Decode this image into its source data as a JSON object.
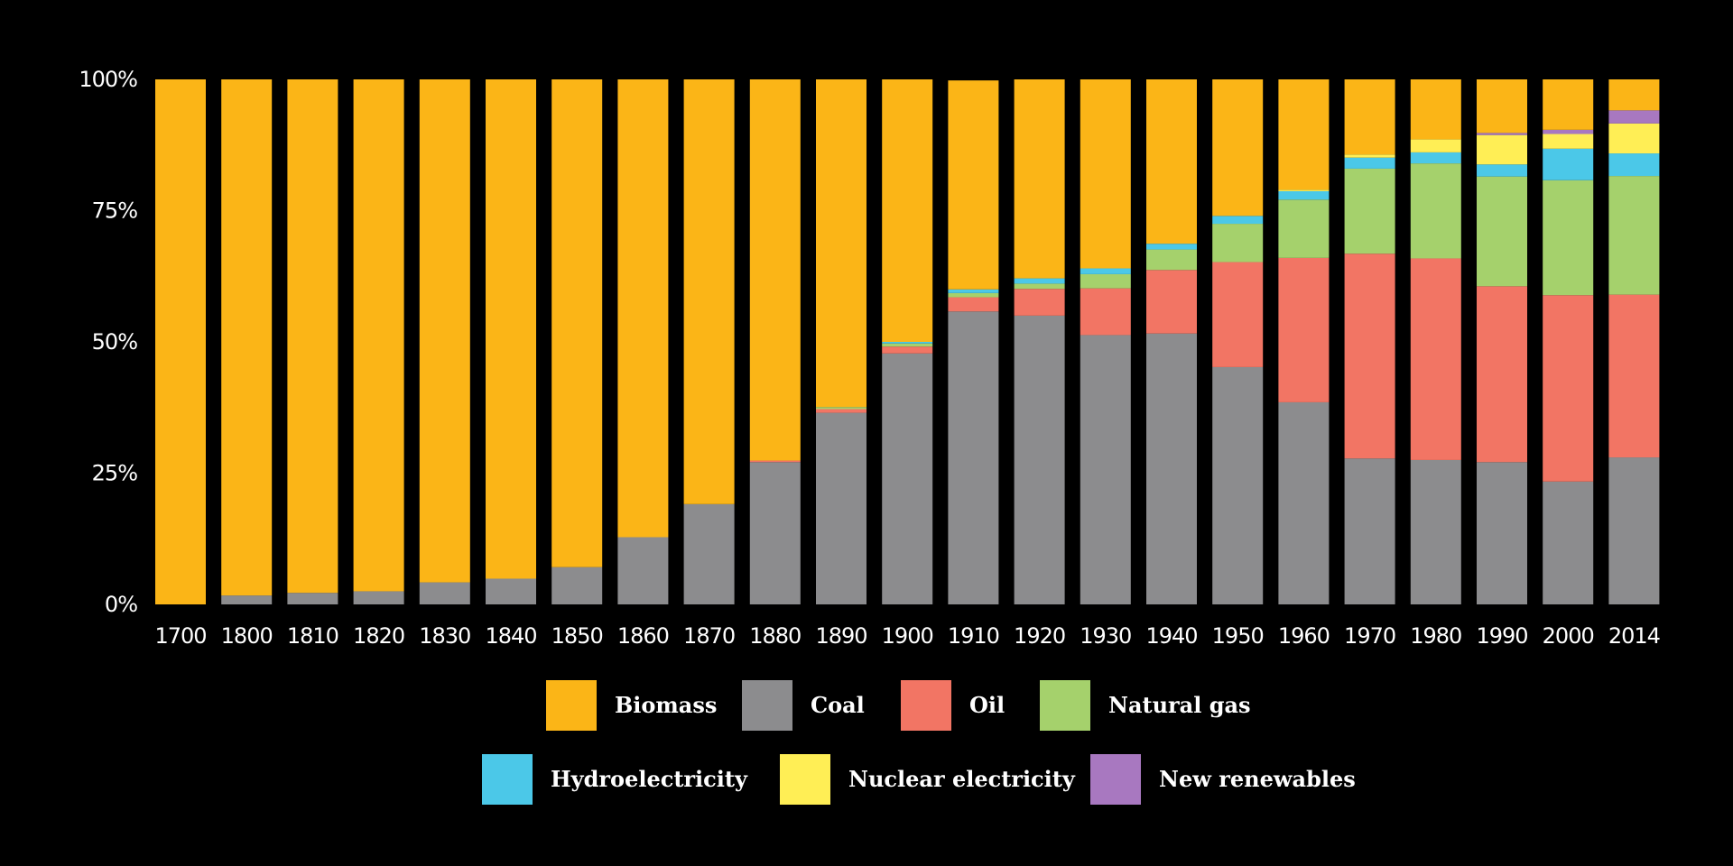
{
  "chart_data": {
    "type": "bar",
    "stacked": true,
    "normalized": true,
    "title": "",
    "xlabel": "",
    "ylabel": "",
    "ylim": [
      0,
      100
    ],
    "y_ticks": [
      "0%",
      "25%",
      "50%",
      "75%",
      "100%"
    ],
    "y_tick_values": [
      0,
      25,
      50,
      75,
      100
    ],
    "legend_position": "bottom",
    "categories": [
      "1700",
      "1800",
      "1810",
      "1820",
      "1830",
      "1840",
      "1850",
      "1860",
      "1870",
      "1880",
      "1890",
      "1900",
      "1910",
      "1920",
      "1930",
      "1940",
      "1950",
      "1960",
      "1970",
      "1980",
      "1990",
      "2000",
      "2014"
    ],
    "series": [
      {
        "name": "Coal",
        "color": "#8c8c8e",
        "values": [
          0,
          1.7,
          2.2,
          2.5,
          4.2,
          4.9,
          7.1,
          12.8,
          19.1,
          27.1,
          36.5,
          47.8,
          55.8,
          55.0,
          51.3,
          51.6,
          45.2,
          38.5,
          27.8,
          27.5,
          27.1,
          23.4,
          28.0
        ]
      },
      {
        "name": "Oil",
        "color": "#f27564",
        "values": [
          0,
          0,
          0,
          0,
          0,
          0,
          0,
          0,
          0,
          0.3,
          0.7,
          1.3,
          2.7,
          5.1,
          8.9,
          12.1,
          20.0,
          27.5,
          39.0,
          38.4,
          33.5,
          35.5,
          31.0
        ]
      },
      {
        "name": "Natural gas",
        "color": "#a5d16c",
        "values": [
          0,
          0,
          0,
          0,
          0,
          0,
          0,
          0,
          0,
          0,
          0.4,
          0.6,
          0.8,
          1.0,
          2.7,
          3.9,
          7.3,
          11.1,
          16.2,
          18.1,
          20.9,
          21.9,
          22.6
        ]
      },
      {
        "name": "Hydroelectricity",
        "color": "#4bc8e8",
        "values": [
          0,
          0,
          0,
          0,
          0,
          0,
          0,
          0,
          0,
          0,
          0,
          0.3,
          0.7,
          1.0,
          1.1,
          1.1,
          1.5,
          1.6,
          2.1,
          2.1,
          2.3,
          6.0,
          4.3
        ]
      },
      {
        "name": "Nuclear electricity",
        "color": "#ffee55",
        "values": [
          0,
          0,
          0,
          0,
          0,
          0,
          0,
          0,
          0,
          0,
          0,
          0,
          0,
          0,
          0,
          0,
          0,
          0.3,
          0.6,
          2.5,
          5.6,
          2.8,
          5.7
        ]
      },
      {
        "name": "New renewables",
        "color": "#a878c0",
        "values": [
          0,
          0,
          0,
          0,
          0,
          0,
          0,
          0,
          0,
          0,
          0,
          0,
          0,
          0,
          0,
          0,
          0,
          0,
          0,
          0,
          0.4,
          0.8,
          2.5
        ]
      },
      {
        "name": "Biomass",
        "color": "#fbb517",
        "values": [
          100,
          98.3,
          97.8,
          97.5,
          95.8,
          95.1,
          92.9,
          87.2,
          80.9,
          72.6,
          62.4,
          50.0,
          39.8,
          37.9,
          36.0,
          31.3,
          26.0,
          21.0,
          14.3,
          11.4,
          10.2,
          9.6,
          5.9
        ]
      }
    ],
    "legend": [
      {
        "name": "Biomass",
        "color": "#fbb517"
      },
      {
        "name": "Coal",
        "color": "#8c8c8e"
      },
      {
        "name": "Oil",
        "color": "#f27564"
      },
      {
        "name": "Natural gas",
        "color": "#a5d16c"
      },
      {
        "name": "Hydroelectricity",
        "color": "#4bc8e8"
      },
      {
        "name": "Nuclear electricity",
        "color": "#ffee55"
      },
      {
        "name": "New renewables",
        "color": "#a878c0"
      }
    ]
  }
}
